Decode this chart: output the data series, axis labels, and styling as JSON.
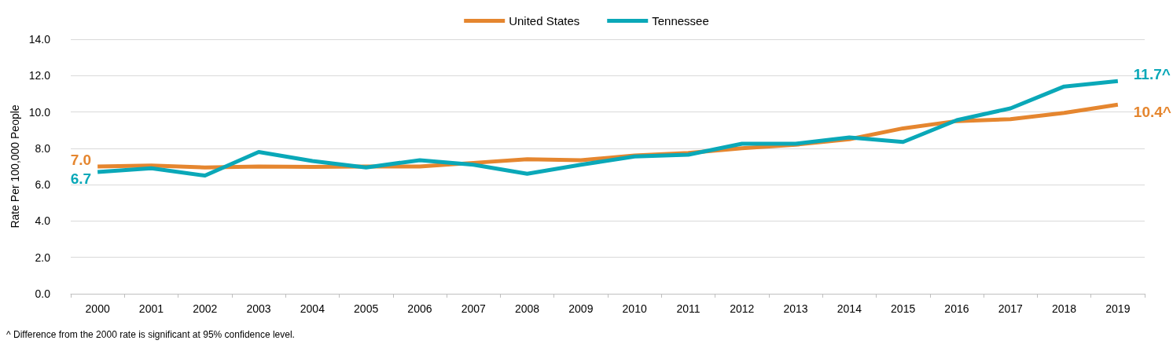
{
  "chart_data": {
    "type": "line",
    "ylabel": "Rate Per 100,000 People",
    "categories": [
      "2000",
      "2001",
      "2002",
      "2003",
      "2004",
      "2005",
      "2006",
      "2007",
      "2008",
      "2009",
      "2010",
      "2011",
      "2012",
      "2013",
      "2014",
      "2015",
      "2016",
      "2017",
      "2018",
      "2019"
    ],
    "series": [
      {
        "name": "United States",
        "color": "#e5862f",
        "values": [
          7.0,
          7.05,
          6.95,
          7.0,
          6.98,
          7.0,
          7.0,
          7.2,
          7.4,
          7.35,
          7.6,
          7.75,
          8.0,
          8.2,
          8.5,
          9.1,
          9.5,
          9.6,
          9.95,
          10.4
        ],
        "value_labels": [
          "7.0",
          null,
          null,
          null,
          null,
          null,
          null,
          null,
          null,
          null,
          null,
          null,
          null,
          null,
          null,
          null,
          null,
          null,
          null,
          "10.4^"
        ]
      },
      {
        "name": "Tennessee",
        "color": "#0aa8b8",
        "values": [
          6.7,
          6.9,
          6.5,
          7.8,
          7.3,
          6.95,
          7.35,
          7.1,
          6.6,
          7.1,
          7.55,
          7.65,
          8.25,
          8.25,
          8.6,
          8.35,
          9.55,
          10.2,
          11.4,
          11.7
        ],
        "value_labels": [
          "6.7",
          null,
          null,
          null,
          null,
          null,
          null,
          null,
          null,
          null,
          null,
          null,
          null,
          null,
          null,
          null,
          null,
          null,
          null,
          "11.7^"
        ]
      }
    ],
    "ylim": [
      0,
      14
    ],
    "yticks": [
      {
        "value": 0,
        "label": "0.0"
      },
      {
        "value": 2,
        "label": "2.0"
      },
      {
        "value": 4,
        "label": "4.0"
      },
      {
        "value": 6,
        "label": "6.0"
      },
      {
        "value": 8,
        "label": "8.0"
      },
      {
        "value": 10,
        "label": "10.0"
      },
      {
        "value": 12,
        "label": "12.0"
      },
      {
        "value": 14,
        "label": "14.0"
      }
    ],
    "grid": "y",
    "legend": "top",
    "marker": "none",
    "line_style": "solid",
    "annotations": [
      "^ Difference from the 2000 rate is significant at 95% confidence level."
    ]
  }
}
